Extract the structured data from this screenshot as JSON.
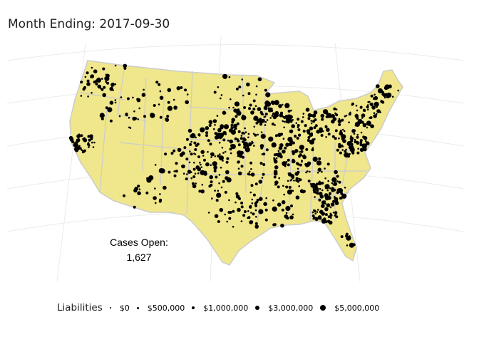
{
  "title": "Month Ending: 2017-09-30",
  "cases_open": {
    "label": "Cases Open:",
    "value": "1,627"
  },
  "legend": {
    "title": "Liabilities",
    "items": [
      {
        "label": "$0",
        "size": 1
      },
      {
        "label": "$500,000",
        "size": 2
      },
      {
        "label": "$1,000,000",
        "size": 3
      },
      {
        "label": "$3,000,000",
        "size": 4
      },
      {
        "label": "$5,000,000",
        "size": 5
      }
    ]
  },
  "colors": {
    "land": "#f0e68c",
    "border": "#cccccc",
    "point": "#000000",
    "graticule": "#ebebeb"
  },
  "map_data": {
    "region": "Contiguous United States",
    "projection": "conic",
    "point_count_shown": "1,627"
  }
}
